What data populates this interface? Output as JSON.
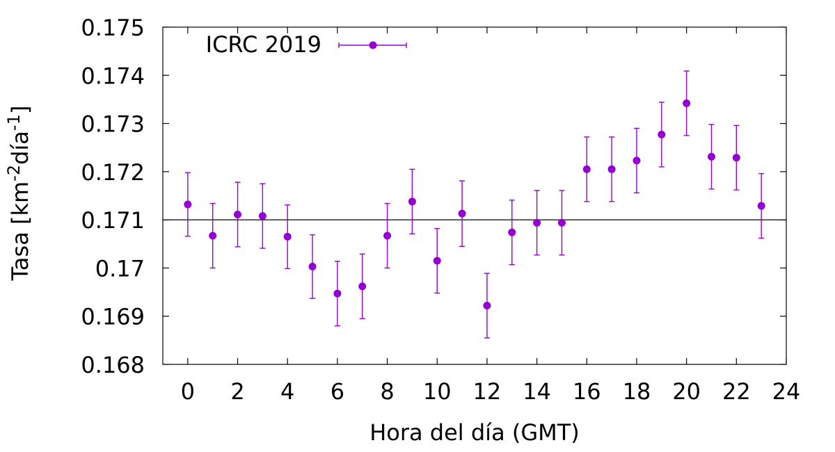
{
  "chart_data": {
    "type": "scatter",
    "xlabel": "Hora del día (GMT)",
    "ylabel": {
      "base": "Tasa [km",
      "sup1": "-2",
      "mid": "día",
      "sup2": "-1",
      "end": "]"
    },
    "xlim": [
      -1,
      24
    ],
    "ylim": [
      0.168,
      0.175
    ],
    "xticks": [
      0,
      2,
      4,
      6,
      8,
      10,
      12,
      14,
      16,
      18,
      20,
      22,
      24
    ],
    "xtick_labels": [
      "0",
      "2",
      "4",
      "6",
      "8",
      "10",
      "12",
      "14",
      "16",
      "18",
      "20",
      "22",
      "24"
    ],
    "yticks": [
      0.168,
      0.169,
      0.17,
      0.171,
      0.172,
      0.173,
      0.174,
      0.175
    ],
    "ytick_labels": [
      "0.168",
      "0.169",
      "0.17",
      "0.171",
      "0.172",
      "0.173",
      "0.174",
      "0.175"
    ],
    "reference_line_y": 0.171,
    "legend_position": "top-left",
    "series": [
      {
        "name": "ICRC 2019",
        "color": "#9400d3",
        "x": [
          0,
          1,
          2,
          3,
          4,
          5,
          6,
          7,
          8,
          9,
          10,
          11,
          12,
          13,
          14,
          15,
          16,
          17,
          18,
          19,
          20,
          21,
          22,
          23
        ],
        "y": [
          0.17132,
          0.17067,
          0.17111,
          0.17108,
          0.17065,
          0.17003,
          0.16947,
          0.16962,
          0.17067,
          0.17138,
          0.17015,
          0.17113,
          0.16922,
          0.17074,
          0.17094,
          0.17094,
          0.17205,
          0.17205,
          0.17223,
          0.17277,
          0.17342,
          0.17231,
          0.17229,
          0.17129
        ],
        "yerr": [
          0.00066,
          0.00067,
          0.00067,
          0.00067,
          0.00066,
          0.00066,
          0.00067,
          0.00067,
          0.00067,
          0.00067,
          0.00067,
          0.00068,
          0.00067,
          0.00067,
          0.00067,
          0.00067,
          0.00067,
          0.00067,
          0.00067,
          0.00067,
          0.00067,
          0.00067,
          0.00067,
          0.00067
        ]
      }
    ]
  }
}
